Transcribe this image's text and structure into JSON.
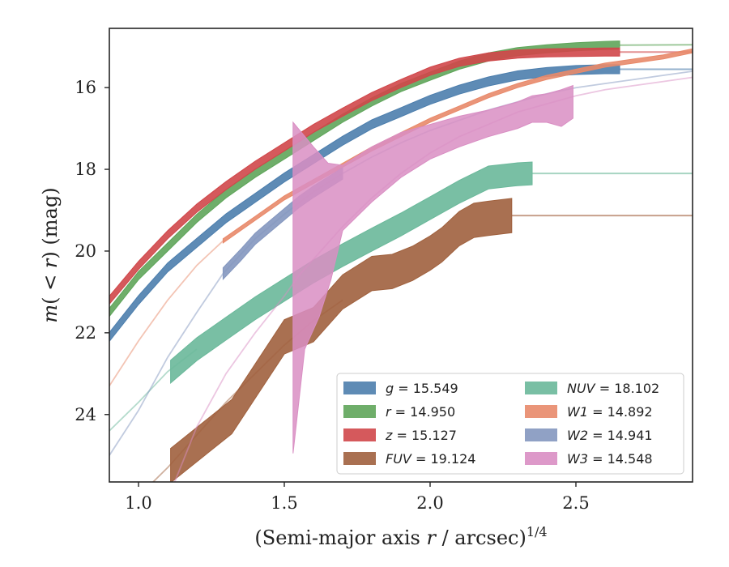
{
  "chart_data": {
    "type": "area",
    "xlabel": "(Semi-major axis r / arcsec)",
    "xlabel_parts": {
      "open": "(Semi-major axis ",
      "var": "r",
      "close": " / arcsec)",
      "exp": "1/4"
    },
    "ylabel": "m(< r) (mag)",
    "ylabel_parts": {
      "m": "m",
      "open": "( ",
      "lt": "< ",
      "r": "r",
      "close": ") (mag)"
    },
    "xlim": [
      0.9,
      2.9
    ],
    "ylim": [
      25.65,
      14.55
    ],
    "y_inverted": true,
    "xticks": [
      1.0,
      1.5,
      2.0,
      2.5
    ],
    "xtick_labels": [
      "1.0",
      "1.5",
      "2.0",
      "2.5"
    ],
    "yticks": [
      16,
      18,
      20,
      22,
      24
    ],
    "ytick_labels": [
      "16",
      "18",
      "20",
      "22",
      "24"
    ],
    "grid": false,
    "legend_position": "lower-right",
    "legend_columns": 2,
    "series": [
      {
        "key": "g",
        "name": "g = 15.549",
        "color": "#4c7ead",
        "band": {
          "x": [
            0.9,
            1.0,
            1.1,
            1.2,
            1.3,
            1.4,
            1.5,
            1.6,
            1.7,
            1.8,
            1.9,
            2.0,
            2.1,
            2.2,
            2.3,
            2.4,
            2.5,
            2.6,
            2.65
          ],
          "y": [
            22.1,
            21.2,
            20.4,
            19.8,
            19.2,
            18.7,
            18.2,
            17.75,
            17.3,
            16.9,
            16.6,
            16.3,
            16.05,
            15.85,
            15.7,
            15.62,
            15.57,
            15.55,
            15.55
          ],
          "half_width": 0.11
        },
        "extension": {
          "x": [
            2.65,
            2.9
          ],
          "y": [
            15.55,
            15.55
          ]
        }
      },
      {
        "key": "r",
        "name": "r = 14.950",
        "color": "#5fa55a",
        "band": {
          "x": [
            0.9,
            1.0,
            1.1,
            1.2,
            1.3,
            1.4,
            1.5,
            1.6,
            1.7,
            1.8,
            1.9,
            2.0,
            2.1,
            2.2,
            2.3,
            2.4,
            2.5,
            2.6,
            2.65
          ],
          "y": [
            21.5,
            20.6,
            19.9,
            19.2,
            18.6,
            18.1,
            17.65,
            17.2,
            16.75,
            16.35,
            16.0,
            15.72,
            15.45,
            15.25,
            15.12,
            15.05,
            15.0,
            14.97,
            14.96
          ],
          "half_width": 0.1
        },
        "extension": {
          "x": [
            2.65,
            2.9
          ],
          "y": [
            14.96,
            14.95
          ]
        }
      },
      {
        "key": "z",
        "name": "z = 15.127",
        "color": "#d0474a",
        "band": {
          "x": [
            0.9,
            1.0,
            1.1,
            1.2,
            1.3,
            1.4,
            1.5,
            1.6,
            1.7,
            1.8,
            1.9,
            2.0,
            2.1,
            2.2,
            2.3,
            2.4,
            2.5,
            2.6,
            2.65
          ],
          "y": [
            21.2,
            20.35,
            19.6,
            18.95,
            18.4,
            17.9,
            17.45,
            17.0,
            16.6,
            16.22,
            15.9,
            15.6,
            15.38,
            15.25,
            15.18,
            15.15,
            15.14,
            15.13,
            15.13
          ],
          "half_width": 0.1
        },
        "extension": {
          "x": [
            2.65,
            2.9
          ],
          "y": [
            15.13,
            15.13
          ]
        }
      },
      {
        "key": "FUV",
        "name": "FUV = 19.124",
        "color": "#a0613e",
        "band": {
          "x": [
            1.11,
            1.32,
            1.5,
            1.6,
            1.7,
            1.8,
            1.87,
            1.94,
            2.0,
            2.04,
            2.1,
            2.15,
            2.2,
            2.28
          ],
          "y": [
            25.25,
            24.05,
            22.1,
            21.8,
            21.0,
            20.55,
            20.5,
            20.3,
            20.05,
            19.85,
            19.45,
            19.25,
            19.2,
            19.13
          ],
          "half_width": 0.42
        },
        "extension": {
          "x": [
            2.28,
            2.9
          ],
          "y": [
            19.13,
            19.13
          ]
        },
        "faint": {
          "x": [
            0.9,
            1.0,
            1.1,
            1.2,
            1.3,
            1.4,
            1.5,
            1.6,
            1.7
          ],
          "y": [
            26.5,
            26.0,
            25.3,
            24.5,
            23.7,
            23.0,
            22.3,
            21.7,
            21.2
          ]
        }
      },
      {
        "key": "NUV",
        "name": "NUV = 18.102",
        "color": "#6ab89a",
        "band": {
          "x": [
            1.11,
            1.2,
            1.3,
            1.4,
            1.5,
            1.6,
            1.7,
            1.8,
            1.9,
            2.0,
            2.1,
            2.2,
            2.3,
            2.35
          ],
          "y": [
            22.95,
            22.4,
            21.9,
            21.4,
            20.95,
            20.5,
            20.1,
            19.72,
            19.35,
            18.95,
            18.55,
            18.2,
            18.12,
            18.1
          ],
          "half_width": 0.28
        },
        "extension": {
          "x": [
            2.35,
            2.9
          ],
          "y": [
            18.1,
            18.1
          ]
        },
        "faint": {
          "x": [
            0.9,
            1.0,
            1.1,
            1.2
          ],
          "y": [
            24.4,
            23.7,
            22.95,
            22.4
          ]
        }
      },
      {
        "key": "W1",
        "name": "W1 = 14.892",
        "color": "#e8896a",
        "band": {
          "x": [
            1.29,
            1.4,
            1.5,
            1.6,
            1.7,
            1.8,
            1.9,
            2.0,
            2.1,
            2.2,
            2.3,
            2.4,
            2.5,
            2.6,
            2.7,
            2.8,
            2.9
          ],
          "y": [
            19.75,
            19.2,
            18.7,
            18.3,
            17.9,
            17.5,
            17.15,
            16.8,
            16.5,
            16.2,
            15.95,
            15.75,
            15.6,
            15.45,
            15.35,
            15.25,
            15.1
          ],
          "half_width": 0.05
        },
        "faint": {
          "x": [
            0.9,
            1.0,
            1.1,
            1.2,
            1.29
          ],
          "y": [
            23.3,
            22.2,
            21.2,
            20.35,
            19.75
          ]
        }
      },
      {
        "key": "W2",
        "name": "W2 = 14.941",
        "color": "#8497bf",
        "band": {
          "x": [
            1.29,
            1.35,
            1.4,
            1.45,
            1.5,
            1.55,
            1.6,
            1.7
          ],
          "y": [
            20.55,
            20.1,
            19.7,
            19.4,
            19.1,
            18.8,
            18.55,
            18.1
          ],
          "half_width": 0.14
        },
        "faint": {
          "x": [
            0.9,
            1.0,
            1.1,
            1.2,
            1.29,
            1.4,
            1.5,
            1.6,
            1.7,
            1.8,
            1.9,
            2.0,
            2.1,
            2.2,
            2.3,
            2.4,
            2.5,
            2.6,
            2.7,
            2.8,
            2.9
          ],
          "y": [
            25.0,
            23.9,
            22.6,
            21.5,
            20.55,
            19.7,
            19.1,
            18.55,
            18.1,
            17.7,
            17.35,
            17.05,
            16.8,
            16.55,
            16.35,
            16.15,
            16.0,
            15.9,
            15.8,
            15.7,
            15.6
          ]
        }
      },
      {
        "key": "W3",
        "name": "W3 = 14.548",
        "color": "#d98ec3",
        "upper": {
          "x": [
            1.53,
            1.6,
            1.65,
            1.7,
            1.8,
            1.9,
            2.0,
            2.1,
            2.2,
            2.3,
            2.35,
            2.4,
            2.45,
            2.49
          ],
          "y": [
            16.85,
            17.45,
            17.85,
            17.9,
            17.45,
            17.1,
            16.9,
            16.7,
            16.55,
            16.35,
            16.2,
            16.15,
            16.05,
            15.95
          ]
        },
        "lower": {
          "x": [
            1.53,
            1.57,
            1.62,
            1.66,
            1.7,
            1.8,
            1.9,
            2.0,
            2.1,
            2.2,
            2.3,
            2.35,
            2.4,
            2.45,
            2.49
          ],
          "y": [
            24.95,
            22.4,
            21.6,
            20.7,
            19.5,
            18.8,
            18.2,
            17.75,
            17.45,
            17.2,
            17.0,
            16.85,
            16.85,
            16.95,
            16.75
          ]
        },
        "faint": {
          "x": [
            1.11,
            1.2,
            1.3,
            1.4,
            1.5,
            1.55,
            1.6,
            1.7,
            1.8,
            1.9,
            2.0,
            2.1,
            2.2,
            2.3,
            2.4,
            2.5,
            2.6,
            2.7,
            2.8,
            2.9
          ],
          "y": [
            25.9,
            24.3,
            23.0,
            22.0,
            21.1,
            20.6,
            20.2,
            19.4,
            18.7,
            18.1,
            17.6,
            17.2,
            16.9,
            16.6,
            16.4,
            16.2,
            16.05,
            15.95,
            15.85,
            15.75
          ]
        }
      }
    ],
    "legend_order": [
      "g",
      "r",
      "z",
      "FUV",
      "NUV",
      "W1",
      "W2",
      "W3"
    ]
  }
}
